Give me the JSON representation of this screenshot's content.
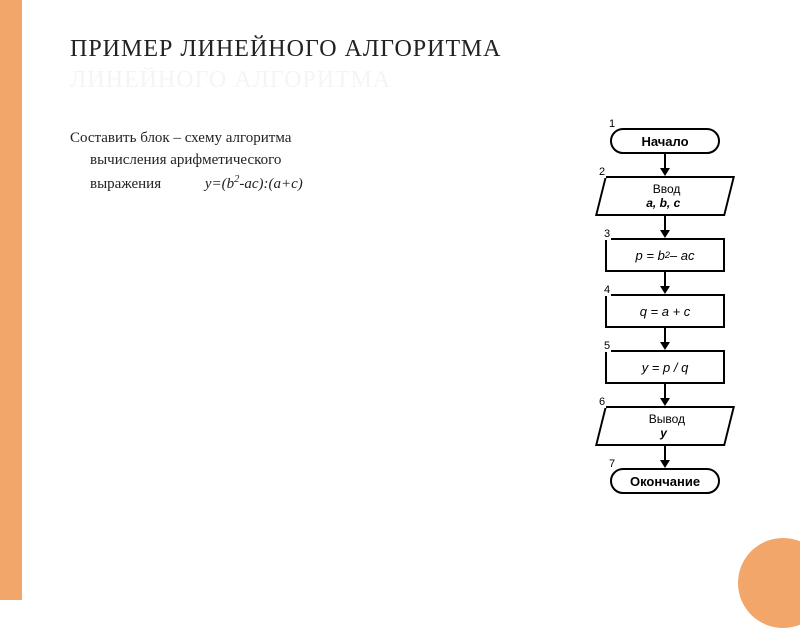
{
  "colors": {
    "accent": "#f2a66a",
    "text": "#222222",
    "line": "#000000",
    "background": "#ffffff"
  },
  "title": "ПРИМЕР ЛИНЕЙНОГО АЛГОРИТМА",
  "ghost_subtitle": "ЛИНЕЙНОГО АЛГОРИТМА",
  "task": {
    "line1": "Составить блок – схему алгоритма",
    "line2": "вычисления арифметического",
    "line3": "выражения",
    "formula_html": "у=(b<sup>2</sup>-ac):(a+c)"
  },
  "flowchart": {
    "type": "flowchart-linear",
    "node_width_terminal": 110,
    "node_width_io": 130,
    "node_width_process": 120,
    "connector_height": 14,
    "font_family": "Arial",
    "nodes": [
      {
        "id": 1,
        "shape": "terminal",
        "label": "Начало"
      },
      {
        "id": 2,
        "shape": "io",
        "label": "Ввод",
        "vars": "a, b, c"
      },
      {
        "id": 3,
        "shape": "process",
        "expr_html": "p = b<sup>2</sup> – ac"
      },
      {
        "id": 4,
        "shape": "process",
        "expr_html": "q = a + c"
      },
      {
        "id": 5,
        "shape": "process",
        "expr_html": "y = p / q"
      },
      {
        "id": 6,
        "shape": "io",
        "label": "Вывод",
        "vars": "y"
      },
      {
        "id": 7,
        "shape": "terminal",
        "label": "Окончание"
      }
    ]
  }
}
